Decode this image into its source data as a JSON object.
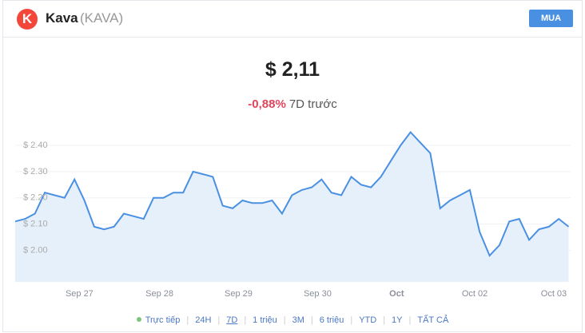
{
  "header": {
    "name": "Kava",
    "symbol": "(KAVA)",
    "button": "MUA"
  },
  "price": "$ 2,11",
  "change": {
    "percent": "-0,88%",
    "period": "7D trước"
  },
  "chart_data": {
    "type": "line",
    "color": "#4a90e2",
    "fill": "#e6f0fb",
    "grid": true,
    "values": [
      2.11,
      2.12,
      2.14,
      2.22,
      2.21,
      2.2,
      2.27,
      2.19,
      2.09,
      2.08,
      2.09,
      2.14,
      2.13,
      2.12,
      2.2,
      2.2,
      2.22,
      2.22,
      2.3,
      2.29,
      2.28,
      2.17,
      2.16,
      2.19,
      2.18,
      2.18,
      2.19,
      2.14,
      2.21,
      2.23,
      2.24,
      2.27,
      2.22,
      2.21,
      2.28,
      2.25,
      2.24,
      2.28,
      2.34,
      2.4,
      2.45,
      2.41,
      2.37,
      2.16,
      2.19,
      2.21,
      2.23,
      2.07,
      1.98,
      2.02,
      2.11,
      2.12,
      2.04,
      2.08,
      2.09,
      2.12,
      2.09
    ],
    "xlim": [
      0,
      56.2
    ],
    "ylim": [
      1.88,
      2.485
    ],
    "xticks": [
      {
        "value": 6.5,
        "label": "Sep 27"
      },
      {
        "value": 14.6,
        "label": "Sep 28"
      },
      {
        "value": 22.6,
        "label": "Sep 29"
      },
      {
        "value": 30.6,
        "label": "Sep 30"
      },
      {
        "value": 38.6,
        "label": "Oct"
      },
      {
        "value": 46.5,
        "label": "Oct 02"
      },
      {
        "value": 54.5,
        "label": "Oct 03"
      }
    ],
    "yticks": [
      {
        "value": 2.0,
        "label": "$ 2.00"
      },
      {
        "value": 2.1,
        "label": "$ 2.10"
      },
      {
        "value": 2.2,
        "label": "$ 2.20"
      },
      {
        "value": 2.3,
        "label": "$ 2.30"
      },
      {
        "value": 2.4,
        "label": "$ 2.40"
      }
    ]
  },
  "ranges": {
    "live": "Trực tiếp",
    "items": [
      "24H",
      "7D",
      "1 triệu",
      "3M",
      "6 triệu",
      "YTD",
      "1Y",
      "TẤT CẢ"
    ],
    "active": "7D"
  }
}
